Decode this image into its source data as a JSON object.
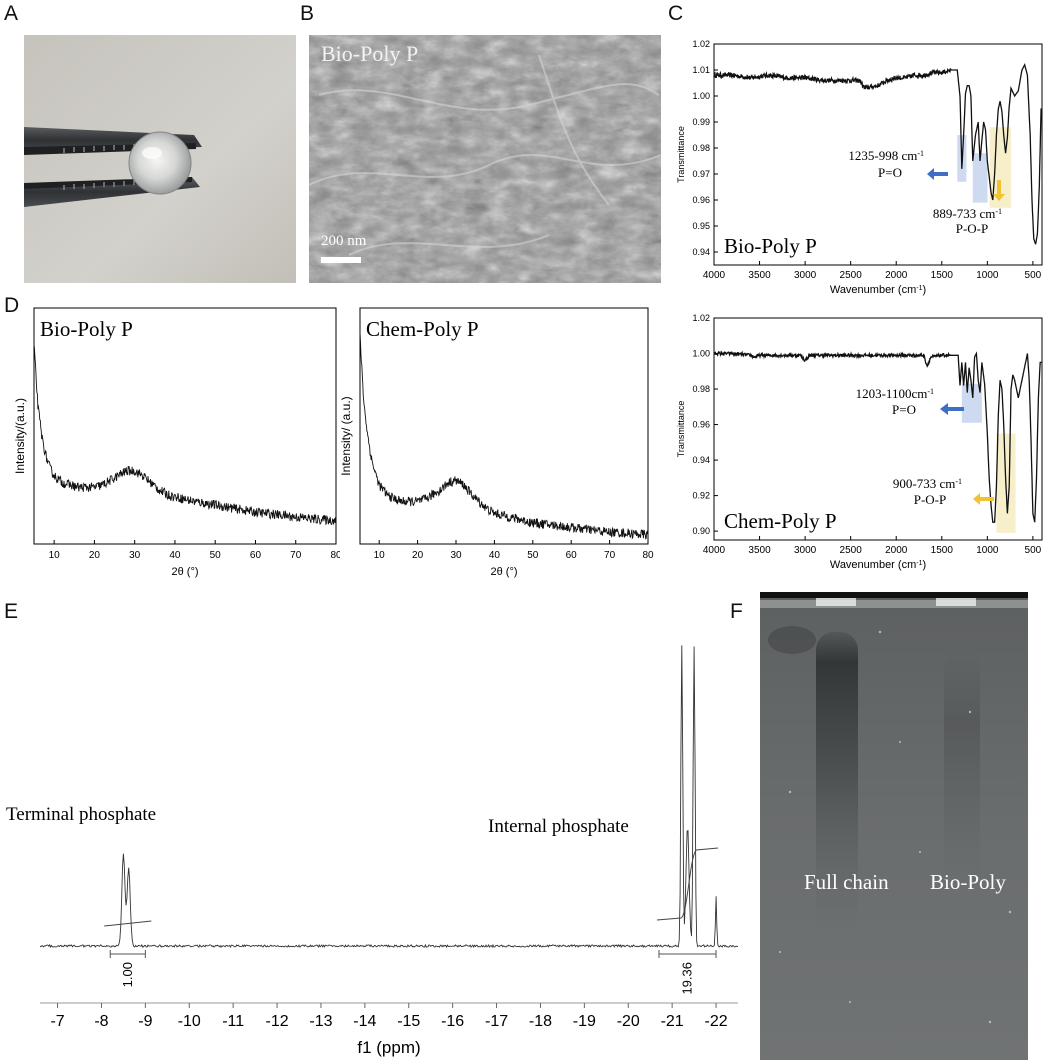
{
  "panels": {
    "a": {
      "letter": "A"
    },
    "b": {
      "letter": "B",
      "label": "Bio-Poly P",
      "scale_bar": "200 nm"
    },
    "c": {
      "letter": "C"
    },
    "d": {
      "letter": "D"
    },
    "e": {
      "letter": "E"
    },
    "f": {
      "letter": "F",
      "lane_labels": [
        "Full chain",
        "Bio-Poly"
      ]
    }
  },
  "colors": {
    "blue_band": "#c9d6ee",
    "yellow_band": "#f6ecc4",
    "blue_arrow": "#3f6fc4",
    "yellow_arrow": "#f1c232",
    "line": "#111111"
  },
  "chart_data": [
    {
      "id": "ftir-bio",
      "type": "line",
      "title": "Bio-Poly P",
      "xlabel": "Wavenumber (cm-1)",
      "ylabel": "Transmittance",
      "xlim": [
        4000,
        400
      ],
      "ylim": [
        0.935,
        1.02
      ],
      "xticks": [
        "4000",
        "3500",
        "3000",
        "2500",
        "2000",
        "1500",
        "1000",
        "500"
      ],
      "yticks": [
        "0.94",
        "0.95",
        "0.96",
        "0.97",
        "0.98",
        "0.99",
        "1.00",
        "1.01",
        "1.02"
      ],
      "x": [
        4000,
        3800,
        3600,
        3400,
        3200,
        3000,
        2800,
        2600,
        2400,
        2350,
        2200,
        2100,
        2000,
        1900,
        1800,
        1700,
        1600,
        1500,
        1400,
        1330,
        1300,
        1280,
        1260,
        1240,
        1220,
        1200,
        1180,
        1160,
        1130,
        1100,
        1080,
        1060,
        1040,
        1020,
        1000,
        980,
        960,
        940,
        920,
        900,
        880,
        860,
        840,
        820,
        800,
        780,
        760,
        740,
        700,
        660,
        620,
        590,
        560,
        530,
        510,
        490,
        470,
        450,
        430,
        410
      ],
      "y": [
        1.008,
        1.008,
        1.007,
        1.008,
        1.007,
        1.007,
        1.006,
        1.006,
        1.006,
        1.003,
        1.004,
        1.006,
        1.007,
        1.007,
        1.008,
        1.008,
        1.009,
        1.009,
        1.01,
        1.01,
        1.0,
        0.972,
        0.985,
        1.001,
        1.004,
        1.004,
        1.0,
        0.975,
        0.985,
        0.99,
        0.975,
        0.983,
        0.99,
        0.987,
        0.975,
        0.969,
        0.963,
        0.96,
        0.97,
        0.985,
        0.995,
        0.998,
        0.994,
        0.985,
        0.978,
        0.984,
        0.996,
        1.003,
        1.0,
        1.002,
        1.01,
        1.012,
        1.008,
        0.985,
        0.96,
        0.945,
        0.943,
        0.947,
        0.965,
        0.995
      ],
      "bands": [
        {
          "color": "blue",
          "from": 1330,
          "to": 1230,
          "ymin": 0.967,
          "ymax": 0.985
        },
        {
          "color": "blue",
          "from": 1160,
          "to": 998,
          "ymin": 0.959,
          "ymax": 0.978
        },
        {
          "color": "yellow",
          "from": 975,
          "to": 740,
          "ymin": 0.957,
          "ymax": 0.988
        }
      ],
      "annotations": [
        {
          "text": "1235-998 cm",
          "sup": "-1",
          "sub": "P=O"
        },
        {
          "text": "889-733 cm",
          "sup": "-1",
          "sub": "P-O-P"
        }
      ]
    },
    {
      "id": "ftir-chem",
      "type": "line",
      "title": "Chem-Poly P",
      "xlabel": "Wavenumber (cm-1)",
      "ylabel": "Transmittance",
      "xlim": [
        4000,
        400
      ],
      "ylim": [
        0.895,
        1.02
      ],
      "xticks": [
        "4000",
        "3500",
        "3000",
        "2500",
        "2000",
        "1500",
        "1000",
        "500"
      ],
      "yticks": [
        "0.90",
        "0.92",
        "0.94",
        "0.96",
        "0.98",
        "1.00",
        "1.02"
      ],
      "x": [
        4000,
        3800,
        3600,
        3550,
        3500,
        3200,
        3050,
        3000,
        2950,
        2700,
        2500,
        2200,
        2000,
        1900,
        1800,
        1700,
        1660,
        1620,
        1500,
        1400,
        1320,
        1300,
        1280,
        1260,
        1240,
        1220,
        1200,
        1180,
        1160,
        1140,
        1120,
        1100,
        1080,
        1060,
        1030,
        1000,
        980,
        960,
        940,
        920,
        900,
        880,
        860,
        840,
        820,
        800,
        780,
        760,
        740,
        720,
        700,
        660,
        620,
        580,
        560,
        540,
        520,
        500,
        480,
        460,
        440,
        420
      ],
      "y": [
        1.0,
        1.0,
        0.999,
        0.998,
        0.999,
        0.999,
        0.999,
        0.996,
        0.999,
        0.999,
        0.999,
        0.999,
        0.999,
        0.999,
        0.999,
        0.999,
        0.993,
        0.998,
        0.999,
        0.999,
        0.999,
        0.982,
        0.995,
        0.982,
        0.995,
        0.978,
        0.992,
        0.985,
        0.975,
        0.998,
        1.0,
        0.985,
        0.978,
        0.995,
        0.983,
        0.955,
        0.93,
        0.915,
        0.905,
        0.905,
        0.925,
        0.965,
        0.985,
        0.98,
        0.96,
        0.93,
        0.91,
        0.925,
        0.98,
        0.988,
        0.985,
        0.975,
        0.985,
        0.995,
        1.0,
        0.985,
        0.95,
        0.91,
        0.905,
        0.93,
        0.975,
        0.995
      ],
      "bands": [
        {
          "color": "blue",
          "from": 1280,
          "to": 1060,
          "ymin": 0.961,
          "ymax": 0.983
        },
        {
          "color": "yellow",
          "from": 900,
          "to": 690,
          "ymin": 0.899,
          "ymax": 0.955
        }
      ],
      "annotations": [
        {
          "text": "1203-1100cm",
          "sup": "-1",
          "sub": "P=O"
        },
        {
          "text": "900-733 cm",
          "sup": "-1",
          "sub": "P-O-P"
        }
      ]
    },
    {
      "id": "xrd-bio",
      "type": "line",
      "title": "Bio-Poly P",
      "xlabel": "2θ (°)",
      "ylabel": "Intensity/(a.u.)",
      "xlim": [
        5,
        80
      ],
      "ylim": [
        0,
        1
      ],
      "xticks": [
        "10",
        "20",
        "30",
        "40",
        "50",
        "60",
        "70",
        "80"
      ],
      "x": [
        5,
        6,
        7,
        8,
        9,
        10,
        12,
        14,
        16,
        18,
        20,
        22,
        24,
        26,
        28,
        30,
        32,
        34,
        36,
        38,
        40,
        45,
        50,
        55,
        60,
        65,
        70,
        75,
        80
      ],
      "y": [
        0.84,
        0.58,
        0.45,
        0.37,
        0.32,
        0.29,
        0.26,
        0.25,
        0.24,
        0.24,
        0.24,
        0.25,
        0.27,
        0.29,
        0.31,
        0.31,
        0.29,
        0.26,
        0.23,
        0.21,
        0.2,
        0.18,
        0.165,
        0.15,
        0.135,
        0.125,
        0.115,
        0.105,
        0.1
      ]
    },
    {
      "id": "xrd-chem",
      "type": "line",
      "title": "Chem-Poly P",
      "xlabel": "2θ (°)",
      "ylabel": "Intensity/ (a.u.)",
      "xlim": [
        5,
        80
      ],
      "ylim": [
        0,
        1
      ],
      "xticks": [
        "10",
        "20",
        "30",
        "40",
        "50",
        "60",
        "70",
        "80"
      ],
      "x": [
        5,
        6,
        7,
        8,
        9,
        10,
        12,
        14,
        16,
        18,
        20,
        22,
        24,
        26,
        28,
        30,
        32,
        34,
        36,
        38,
        40,
        45,
        50,
        55,
        60,
        65,
        70,
        75,
        80
      ],
      "y": [
        0.88,
        0.6,
        0.46,
        0.36,
        0.3,
        0.25,
        0.21,
        0.19,
        0.18,
        0.18,
        0.18,
        0.19,
        0.21,
        0.23,
        0.26,
        0.27,
        0.25,
        0.21,
        0.18,
        0.15,
        0.13,
        0.11,
        0.09,
        0.08,
        0.07,
        0.06,
        0.05,
        0.045,
        0.04
      ]
    },
    {
      "id": "nmr",
      "type": "line",
      "xlabel": "f1 (ppm)",
      "xlim": [
        -6.6,
        -22.5
      ],
      "xticks": [
        "-7",
        "-8",
        "-9",
        "-10",
        "-11",
        "-12",
        "-13",
        "-14",
        "-15",
        "-16",
        "-17",
        "-18",
        "-19",
        "-20",
        "-21",
        "-22"
      ],
      "peaks": [
        {
          "label": "Terminal phosphate",
          "integral": "1.00",
          "range": [
            -8.2,
            -9.0
          ],
          "center": -8.55
        },
        {
          "label": "Internal phosphate",
          "integral": "19.36",
          "range": [
            -20.7,
            -22.0
          ],
          "center": -21.3
        }
      ]
    }
  ]
}
